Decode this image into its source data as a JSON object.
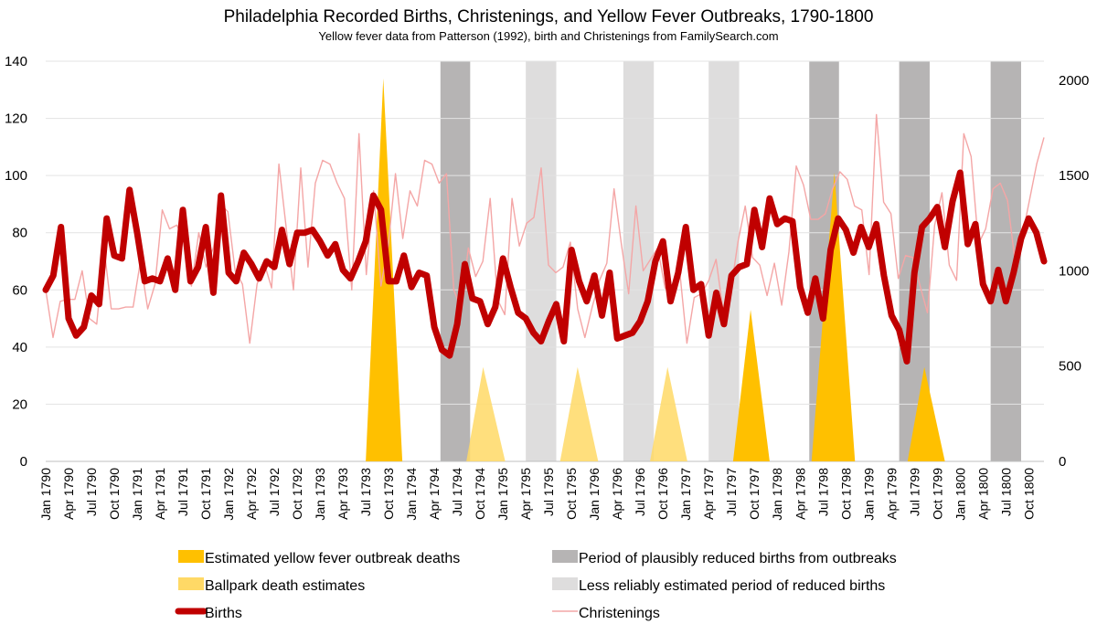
{
  "chart_data": {
    "type": "line",
    "title": "Philadelphia Recorded Births, Christenings, and Yellow Fever Outbreaks, 1790-1800",
    "subtitle": "Yellow fever data from Patterson (1992), birth and Christenings from FamilySearch.com",
    "left_axis": {
      "min": 0,
      "max": 140,
      "ticks": [
        "0",
        "20",
        "40",
        "60",
        "80",
        "100",
        "120",
        "140"
      ]
    },
    "right_axis": {
      "min": 0,
      "max": 2100,
      "ticks": [
        "0",
        "500",
        "1000",
        "1500",
        "2000"
      ]
    },
    "x_tick_labels": [
      "Jan 1790",
      "Apr 1790",
      "Jul 1790",
      "Oct 1790",
      "Jan 1791",
      "Apr 1791",
      "Jul 1791",
      "Oct 1791",
      "Jan 1792",
      "Apr 1792",
      "Jul 1792",
      "Oct 1792",
      "Jan 1793",
      "Apr 1793",
      "Jul 1793",
      "Oct 1793",
      "Jan 1794",
      "Apr 1794",
      "Jul 1794",
      "Oct 1794",
      "Jan 1795",
      "Apr 1795",
      "Jul 1795",
      "Oct 1795",
      "Jan 1796",
      "Apr 1796",
      "Jul 1796",
      "Oct 1796",
      "Jan 1797",
      "Apr 1797",
      "Jul 1797",
      "Oct 1797",
      "Jan 1798",
      "Apr 1798",
      "Jul 1798",
      "Oct 1798",
      "Jan 1799",
      "Apr 1799",
      "Jul 1799",
      "Oct 1799",
      "Jan 1800",
      "Apr 1800",
      "Jul 1800",
      "Oct 1800"
    ],
    "births": [
      60,
      65,
      82,
      50,
      44,
      47,
      58,
      55,
      85,
      72,
      71,
      95,
      80,
      63,
      64,
      63,
      71,
      60,
      88,
      63,
      68,
      82,
      59,
      93,
      66,
      63,
      73,
      69,
      64,
      70,
      68,
      81,
      69,
      80,
      80,
      81,
      77,
      72,
      76,
      67,
      64,
      70,
      77,
      93,
      88,
      63,
      63,
      72,
      61,
      66,
      65,
      47,
      39,
      37,
      48,
      69,
      57,
      56,
      48,
      54,
      71,
      61,
      52,
      50,
      45,
      42,
      49,
      55,
      42,
      74,
      63,
      56,
      65,
      51,
      66,
      43,
      44,
      45,
      49,
      56,
      70,
      77,
      56,
      66,
      82,
      60,
      62,
      44,
      59,
      48,
      65,
      68,
      69,
      88,
      75,
      92,
      83,
      85,
      84,
      61,
      52,
      64,
      50,
      74,
      85,
      81,
      73,
      82,
      75,
      83,
      65,
      51,
      46,
      35,
      66,
      82,
      85,
      89,
      75,
      91,
      101,
      76,
      83,
      62,
      56,
      67,
      56,
      66,
      78,
      85,
      80,
      70
    ],
    "christenings": [
      900,
      650,
      840,
      850,
      850,
      1000,
      750,
      720,
      1120,
      800,
      800,
      810,
      810,
      1050,
      800,
      930,
      1320,
      1220,
      1240,
      1150,
      920,
      1200,
      1020,
      1120,
      1350,
      1310,
      1000,
      930,
      620,
      930,
      1040,
      910,
      1560,
      1230,
      900,
      1540,
      1020,
      1460,
      1580,
      1560,
      1460,
      1380,
      900,
      1720,
      980,
      1420,
      920,
      1130,
      1510,
      1170,
      1420,
      1340,
      1580,
      1560,
      1460,
      1510,
      900,
      800,
      1120,
      970,
      1050,
      1380,
      850,
      770,
      1380,
      1130,
      1250,
      1280,
      1540,
      1030,
      990,
      1020,
      1150,
      800,
      650,
      810,
      950,
      1040,
      1430,
      1140,
      880,
      1340,
      1000,
      1060,
      1120,
      910,
      880,
      1000,
      620,
      860,
      880,
      950,
      1060,
      780,
      890,
      1150,
      1340,
      1070,
      1030,
      870,
      1040,
      820,
      1100,
      1550,
      1450,
      1270,
      1270,
      1300,
      1430,
      1520,
      1480,
      1340,
      1320,
      980,
      1820,
      1360,
      1300,
      960,
      1080,
      1070,
      920,
      780,
      1240,
      1410,
      1030,
      950,
      1720,
      1600,
      1140,
      1220,
      1430,
      1460,
      1370,
      1060,
      1180,
      1370,
      1560,
      1700
    ],
    "outbreak_deaths": [
      {
        "label": "1793",
        "start": 42,
        "peak_index": 44.3,
        "end": 46.8,
        "peak": 134,
        "estimated": true
      },
      {
        "label": "1797",
        "start": 90.2,
        "peak_index": 92.5,
        "end": 95.0,
        "peak": 53,
        "estimated": true
      },
      {
        "label": "1798",
        "start": 100.5,
        "peak_index": 103.5,
        "end": 106.2,
        "peak": 101,
        "estimated": true
      },
      {
        "label": "1799",
        "start": 113.1,
        "peak_index": 115.3,
        "end": 118.0,
        "peak": 33,
        "estimated": true
      },
      {
        "label": "1794",
        "start": 55.2,
        "peak_index": 57.4,
        "end": 60.3,
        "peak": 33,
        "estimated": false
      },
      {
        "label": "1795",
        "start": 67.5,
        "peak_index": 69.8,
        "end": 72.5,
        "peak": 33,
        "estimated": false
      },
      {
        "label": "1796",
        "start": 79.3,
        "peak_index": 81.6,
        "end": 84.2,
        "peak": 33,
        "estimated": false
      }
    ],
    "reduced_birth_periods": [
      {
        "start": 51.8,
        "end": 55.7,
        "reliable": true
      },
      {
        "start": 100.2,
        "end": 104.1,
        "reliable": true
      },
      {
        "start": 112.0,
        "end": 116.0,
        "reliable": true
      },
      {
        "start": 124.0,
        "end": 128.0,
        "reliable": true
      },
      {
        "start": 63.0,
        "end": 67.0,
        "reliable": false
      },
      {
        "start": 75.8,
        "end": 79.8,
        "reliable": false
      },
      {
        "start": 87.0,
        "end": 91.0,
        "reliable": false
      }
    ],
    "legend": [
      {
        "key": "estimated",
        "label": "Estimated yellow fever outbreak deaths",
        "color": "#FFC000"
      },
      {
        "key": "reliable",
        "label": "Period of plausibly reduced births from outbreaks",
        "color": "#B6B4B4"
      },
      {
        "key": "ballpark",
        "label": "Ballpark death estimates",
        "color": "#FFD966"
      },
      {
        "key": "unreliable",
        "label": "Less reliably estimated period of reduced births",
        "color": "#DEDDDD"
      },
      {
        "key": "births",
        "label": "Births",
        "color": "#C00000"
      },
      {
        "key": "christenings",
        "label": "Christenings",
        "color": "#F4A6A6"
      }
    ]
  }
}
